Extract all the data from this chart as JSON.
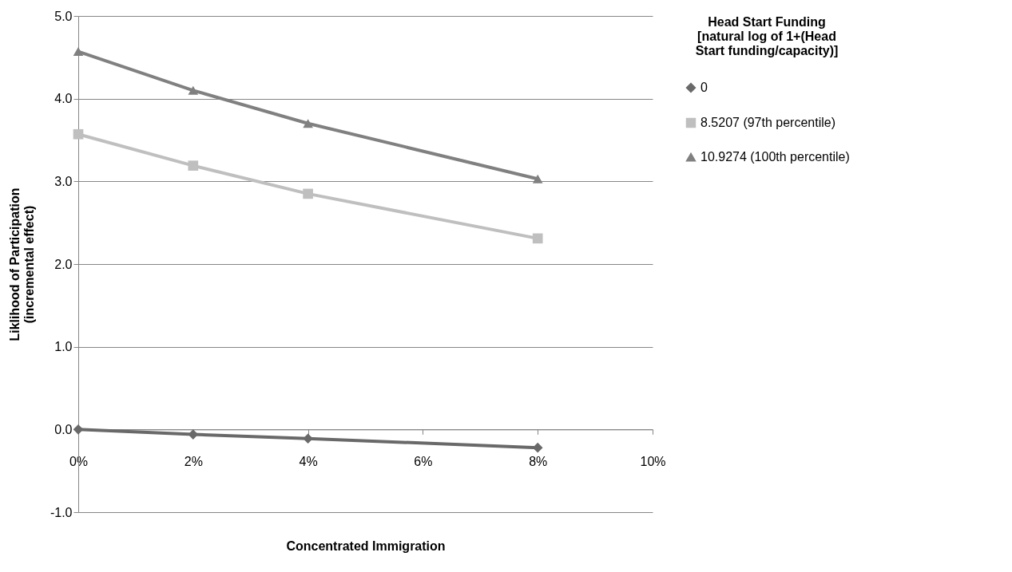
{
  "chart_data": {
    "type": "line",
    "xlabel": "Concentrated Immigration",
    "ylabel": "Liklihood of Participation (incremental effect)",
    "legend_title": "Head Start Funding [natural log of 1+(Head Start funding/capacity)]",
    "x": [
      0,
      2,
      4,
      8
    ],
    "series": [
      {
        "name": "0",
        "color": "#696969",
        "marker": "diamond",
        "values": [
          0.0,
          -0.06,
          -0.11,
          -0.22
        ]
      },
      {
        "name": "8.5207 (97th percentile)",
        "color": "#bfbfbf",
        "marker": "square",
        "values": [
          3.57,
          3.19,
          2.85,
          2.31
        ]
      },
      {
        "name": "10.9274 (100th percentile)",
        "color": "#808080",
        "marker": "triangle",
        "values": [
          4.57,
          4.1,
          3.7,
          3.03
        ]
      }
    ],
    "xlim": [
      0,
      10
    ],
    "xticks": [
      {
        "value": 0,
        "label": "0%"
      },
      {
        "value": 2,
        "label": "2%"
      },
      {
        "value": 4,
        "label": "4%"
      },
      {
        "value": 6,
        "label": "6%"
      },
      {
        "value": 8,
        "label": "8%"
      },
      {
        "value": 10,
        "label": "10%"
      }
    ],
    "ylim": [
      -1,
      5
    ],
    "yticks": [
      {
        "value": -1,
        "label": "-1.0"
      },
      {
        "value": 0,
        "label": "0.0"
      },
      {
        "value": 1,
        "label": "1.0"
      },
      {
        "value": 2,
        "label": "2.0"
      },
      {
        "value": 3,
        "label": "3.0"
      },
      {
        "value": 4,
        "label": "4.0"
      },
      {
        "value": 5,
        "label": "5.0"
      }
    ],
    "grid": "y",
    "legend": "right",
    "line_style": "solid"
  }
}
